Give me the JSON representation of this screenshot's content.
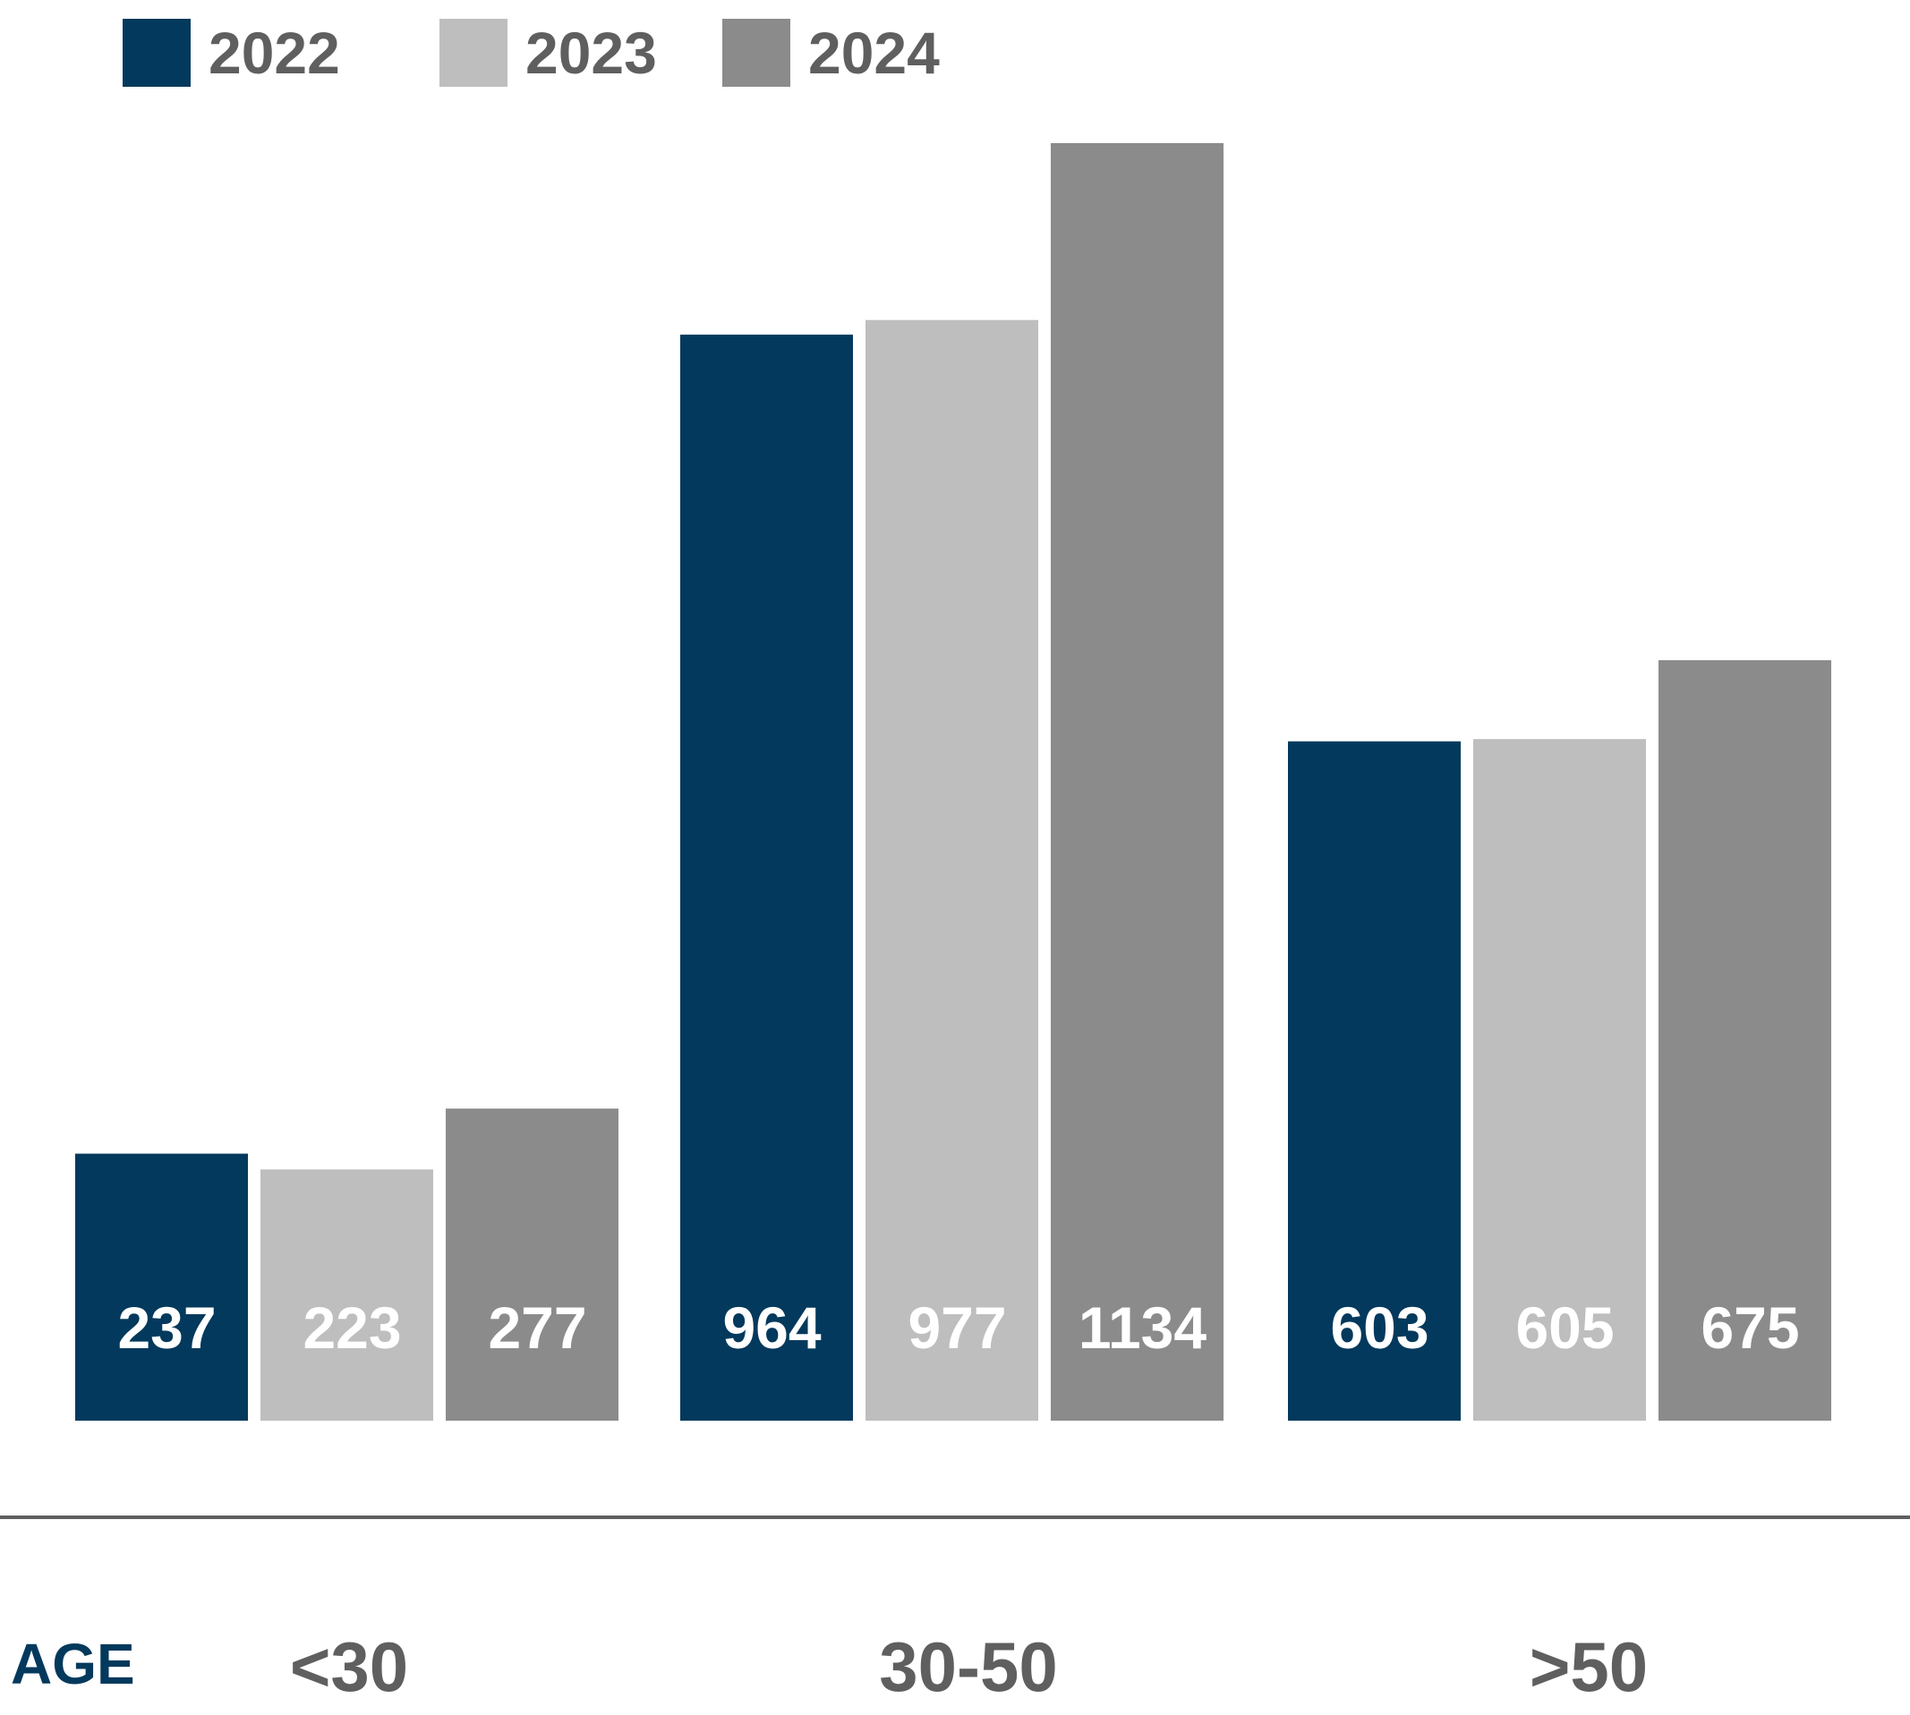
{
  "chart_data": {
    "type": "bar",
    "xlabel": "AGE",
    "categories": [
      "<30",
      "30-50",
      ">50"
    ],
    "series": [
      {
        "name": "2022",
        "color": "#03395c",
        "values": [
          237,
          964,
          603
        ]
      },
      {
        "name": "2023",
        "color": "#bebebe",
        "values": [
          223,
          977,
          605
        ]
      },
      {
        "name": "2024",
        "color": "#8b8b8b",
        "values": [
          277,
          1134,
          675
        ]
      }
    ],
    "data_labels": true,
    "grid": false,
    "legend": "top-left",
    "axis_line_color": "#5f5f5f"
  }
}
